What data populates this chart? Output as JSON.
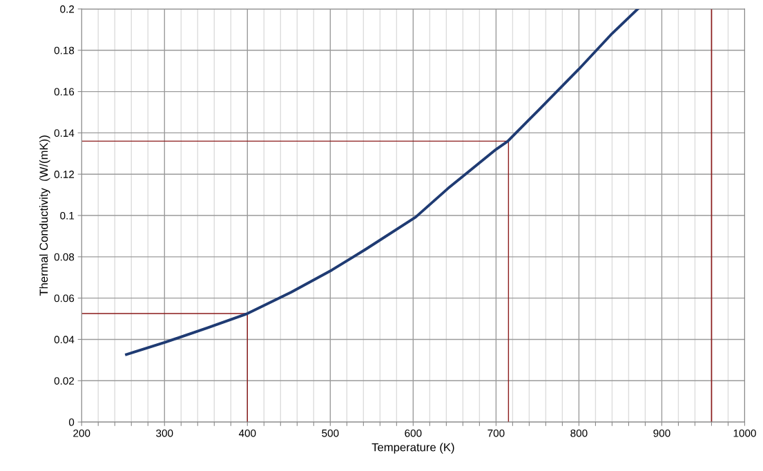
{
  "chart_data": {
    "type": "line",
    "xlabel": "Temperature (K)",
    "ylabel": "Thermal Conductivity  (W/(mK))",
    "series": [
      {
        "color": "#1f3b73",
        "x": [
          254,
          300,
          352,
          400,
          453,
          502,
          543,
          603,
          642,
          700,
          714,
          751,
          800,
          840,
          871
        ],
        "values": [
          0.0327,
          0.0385,
          0.0456,
          0.0525,
          0.0629,
          0.0736,
          0.0837,
          0.0992,
          0.1131,
          0.132,
          0.1359,
          0.1509,
          0.1709,
          0.1881,
          0.2
        ]
      },
      {
        "color": "#8b1a1a",
        "x": [
          200,
          715,
          715
        ],
        "values": [
          0.136,
          0.136,
          0
        ]
      },
      {
        "color": "#8b1a1a",
        "x": [
          200,
          400,
          400
        ],
        "values": [
          0.0525,
          0.0525,
          0
        ]
      }
    ],
    "ref_lines": [
      {
        "axis": "x",
        "value": 960,
        "color": "#8b1a1a"
      }
    ],
    "xlim": [
      200,
      1000
    ],
    "ylim": [
      0,
      0.2
    ],
    "xticks": [
      200,
      {
        "value": 220,
        "label": null
      },
      {
        "value": 240,
        "label": null
      },
      {
        "value": 260,
        "label": null
      },
      {
        "value": 280,
        "label": null
      },
      300,
      {
        "value": 320,
        "label": null
      },
      {
        "value": 340,
        "label": null
      },
      {
        "value": 360,
        "label": null
      },
      {
        "value": 380,
        "label": null
      },
      400,
      {
        "value": 420,
        "label": null
      },
      {
        "value": 440,
        "label": null
      },
      {
        "value": 460,
        "label": null
      },
      {
        "value": 480,
        "label": null
      },
      500,
      {
        "value": 520,
        "label": null
      },
      {
        "value": 540,
        "label": null
      },
      {
        "value": 560,
        "label": null
      },
      {
        "value": 580,
        "label": null
      },
      600,
      {
        "value": 620,
        "label": null
      },
      {
        "value": 640,
        "label": null
      },
      {
        "value": 660,
        "label": null
      },
      {
        "value": 680,
        "label": null
      },
      700,
      {
        "value": 720,
        "label": null
      },
      {
        "value": 740,
        "label": null
      },
      {
        "value": 760,
        "label": null
      },
      {
        "value": 780,
        "label": null
      },
      800,
      {
        "value": 820,
        "label": null
      },
      {
        "value": 840,
        "label": null
      },
      {
        "value": 860,
        "label": null
      },
      {
        "value": 880,
        "label": null
      },
      900,
      {
        "value": 920,
        "label": null
      },
      {
        "value": 940,
        "label": null
      },
      {
        "value": 960,
        "label": null
      },
      {
        "value": 980,
        "label": null
      },
      1000
    ],
    "yticks": [
      0,
      0.02,
      0.04,
      0.06,
      0.08,
      0.1,
      0.12,
      0.14,
      0.16,
      0.18,
      0.2
    ],
    "grid": true,
    "marker": "none",
    "line_style": "solid"
  }
}
